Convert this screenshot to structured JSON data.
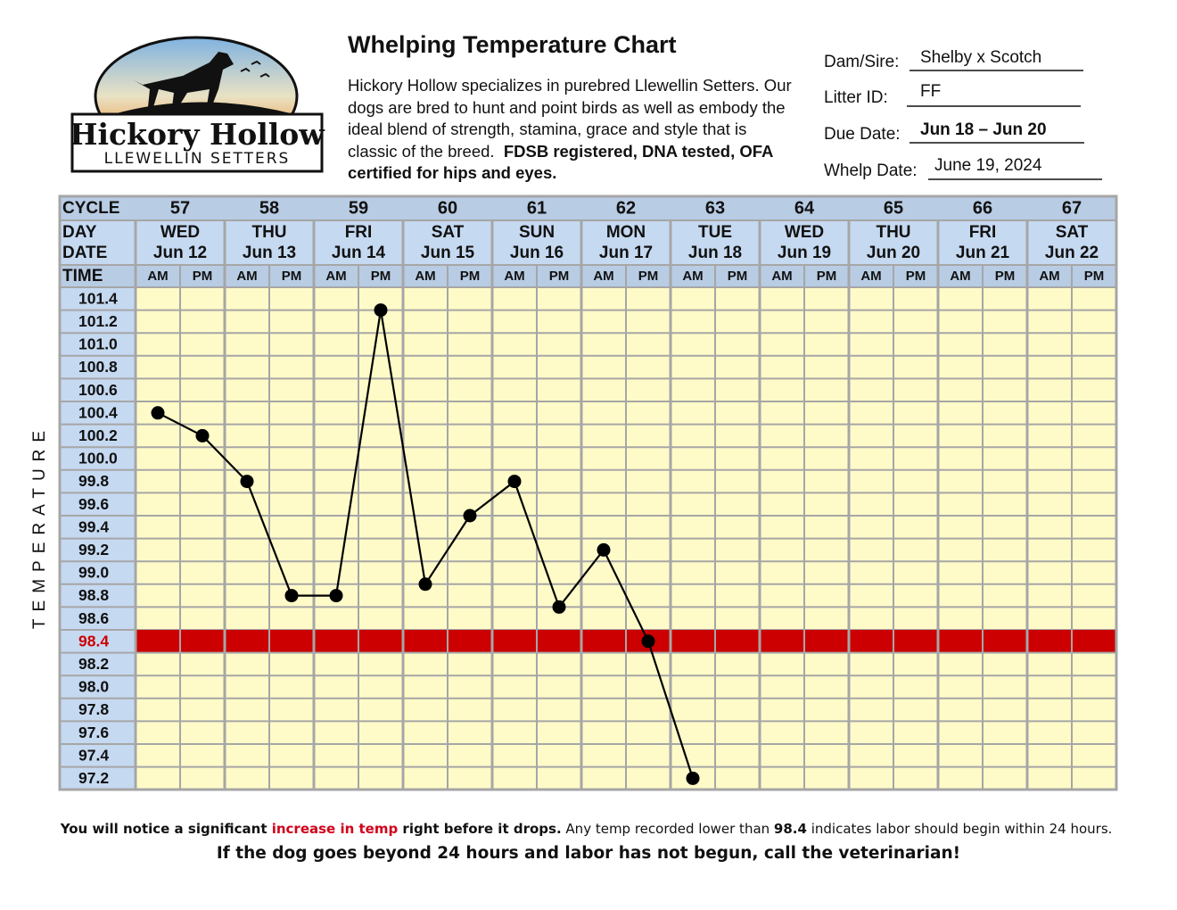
{
  "header": {
    "title": "Whelping Temperature Chart",
    "intro": "Hickory Hollow specializes in purebred Llewellin Setters. Our dogs are bred to hunt and point birds as well as embody the ideal blend of strength, stamina, grace and style that is classic of the breed.",
    "intro_bold": "FDSB registered, DNA tested, OFA certified for hips and eyes."
  },
  "logo": {
    "name": "Hickory Hollow",
    "tagline": "Llewellin Setters"
  },
  "form": {
    "fields": [
      {
        "label": "Dam/Sire:",
        "value": "Shelby x Scotch"
      },
      {
        "label": "Litter ID:",
        "value": "FF"
      },
      {
        "label": "Due Date:",
        "value": "Jun 18 – Jun 20"
      },
      {
        "label": "Whelp Date:",
        "value": "June 19, 2024"
      }
    ]
  },
  "chart_data": {
    "type": "line",
    "row_labels": {
      "cycle": "CYCLE",
      "day": "DAY",
      "date": "DATE",
      "time": "TIME"
    },
    "y_label": "TEMPERATURE",
    "cycles": [
      57,
      58,
      59,
      60,
      61,
      62,
      63,
      64,
      65,
      66,
      67
    ],
    "days": [
      "WED",
      "THU",
      "FRI",
      "SAT",
      "SUN",
      "MON",
      "TUE",
      "WED",
      "THU",
      "FRI",
      "SAT"
    ],
    "dates": [
      "Jun 12",
      "Jun 13",
      "Jun 14",
      "Jun 15",
      "Jun 16",
      "Jun 17",
      "Jun 18",
      "Jun 19",
      "Jun 20",
      "Jun 21",
      "Jun 22"
    ],
    "categories": [
      "AM",
      "PM",
      "AM",
      "PM",
      "AM",
      "PM",
      "AM",
      "PM",
      "AM",
      "PM",
      "AM",
      "PM",
      "AM",
      "PM",
      "AM",
      "PM",
      "AM",
      "PM",
      "AM",
      "PM",
      "AM",
      "PM"
    ],
    "values": [
      100.4,
      100.2,
      99.8,
      98.8,
      98.8,
      101.3,
      98.9,
      99.5,
      99.8,
      98.7,
      99.2,
      98.4,
      97.2,
      null,
      null,
      null,
      null,
      null,
      null,
      null,
      null,
      null
    ],
    "color": "#000000",
    "ylim": [
      97.2,
      101.4
    ],
    "yticks": [
      101.4,
      101.2,
      {
        "value": 101.0,
        "label": "101.0"
      },
      100.8,
      100.6,
      100.4,
      100.2,
      {
        "value": 100.0,
        "label": "100.0"
      },
      99.8,
      99.6,
      99.4,
      99.2,
      {
        "value": 99.0,
        "label": "99.0"
      },
      98.8,
      98.6,
      98.4,
      98.2,
      {
        "value": 98.0,
        "label": "98.0"
      },
      97.8,
      97.6,
      97.4,
      97.2
    ],
    "threshold": 98.4,
    "threshold_color": "#cc0000",
    "grid": true
  },
  "footer": {
    "line1": [
      "You will notice a significant ",
      "increase in temp",
      " right before it drops.",
      " Any temp recorded lower than ",
      "98.4",
      " indicates labor should begin within 24 hours."
    ],
    "line2": "If the dog goes beyond 24 hours and labor has not begun, call the veterinarian!"
  }
}
